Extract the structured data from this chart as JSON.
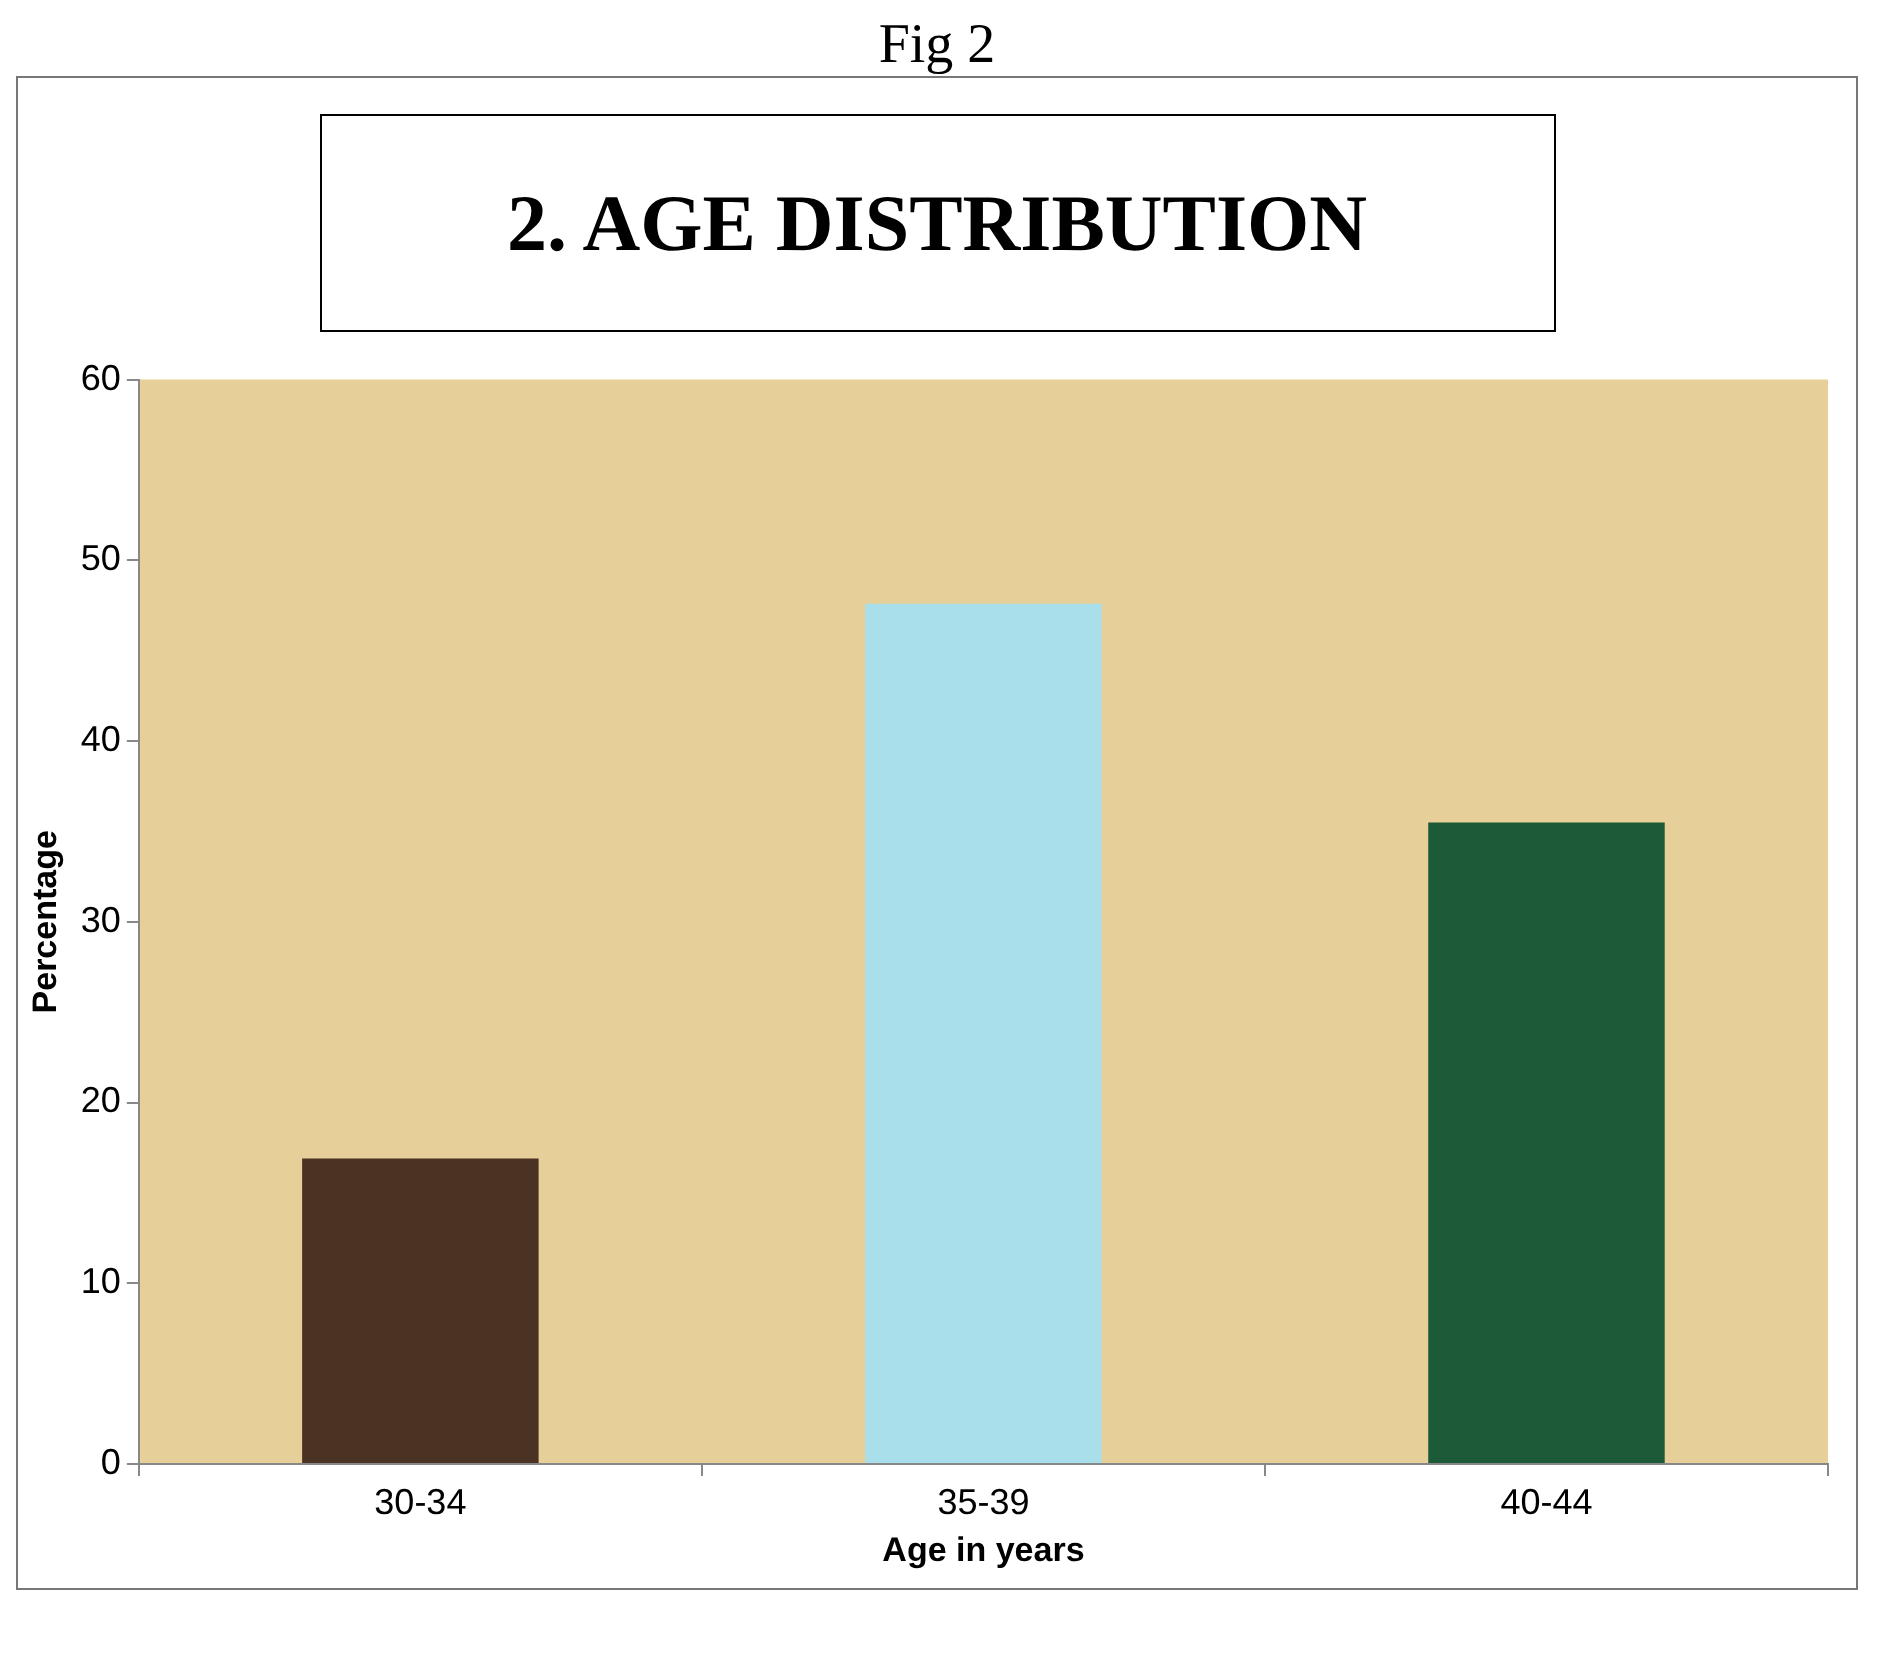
{
  "chart_data": {
    "type": "bar",
    "title": "2. AGE DISTRIBUTION",
    "annotations": [
      "Fig 2"
    ],
    "xlabel": "Age in years",
    "ylabel": "Percentage",
    "categories": [
      "30-34",
      "35-39",
      "40-44"
    ],
    "values": [
      16.9,
      47.6,
      35.5
    ],
    "colors": [
      "#4a3322",
      "#a9dfea",
      "#1d5a38"
    ],
    "ylim": [
      0,
      60
    ],
    "yticks": [
      0,
      10,
      20,
      30,
      40,
      50,
      60
    ],
    "grid": false,
    "legend": false
  }
}
